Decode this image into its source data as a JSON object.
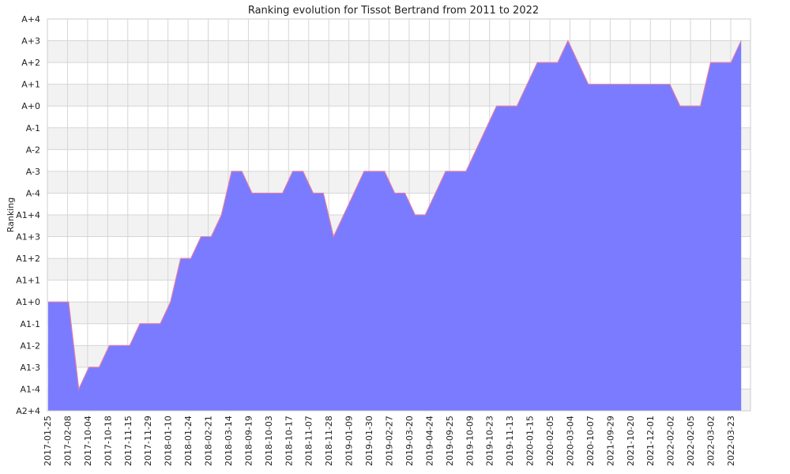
{
  "chart_data": {
    "type": "area",
    "title": "Ranking evolution for Tissot Bertrand from 2011 to 2022",
    "ylabel": "Ranking",
    "xlabel": "",
    "y_categories": [
      "A2+4",
      "A1-4",
      "A1-3",
      "A1-2",
      "A1-1",
      "A1+0",
      "A1+1",
      "A1+2",
      "A1+3",
      "A1+4",
      "A-4",
      "A-3",
      "A-2",
      "A-1",
      "A+0",
      "A+1",
      "A+2",
      "A+3",
      "A+4"
    ],
    "x_tick_labels": [
      "2017-01-25",
      "2017-02-08",
      "2017-10-04",
      "2017-10-18",
      "2017-11-15",
      "2017-11-29",
      "2018-01-10",
      "2018-01-24",
      "2018-02-21",
      "2018-03-14",
      "2018-09-19",
      "2018-10-03",
      "2018-10-17",
      "2018-11-07",
      "2018-11-28",
      "2019-01-09",
      "2019-01-30",
      "2019-02-27",
      "2019-03-20",
      "2019-04-24",
      "2019-09-25",
      "2019-10-09",
      "2019-10-23",
      "2019-11-13",
      "2020-01-15",
      "2020-02-05",
      "2020-03-04",
      "2020-10-07",
      "2021-09-29",
      "2021-10-20",
      "2021-12-01",
      "2022-02-02",
      "2022-02-05",
      "2022-03-02",
      "2022-03-23"
    ],
    "series": [
      {
        "values": [
          "A1+0",
          "A1+0",
          "A1+0",
          "A1-4",
          "A1-3",
          "A1-3",
          "A1-2",
          "A1-2",
          "A1-2",
          "A1-1",
          "A1-1",
          "A1-1",
          "A1+0",
          "A1+2",
          "A1+2",
          "A1+3",
          "A1+3",
          "A1+4",
          "A-3",
          "A-3",
          "A-4",
          "A-4",
          "A-4",
          "A-4",
          "A-3",
          "A-3",
          "A-4",
          "A-4",
          "A1+3",
          "A1+4",
          "A-4",
          "A-3",
          "A-3",
          "A-3",
          "A-4",
          "A-4",
          "A1+4",
          "A1+4",
          "A-4",
          "A-3",
          "A-3",
          "A-3",
          "A-2",
          "A-1",
          "A+0",
          "A+0",
          "A+0",
          "A+1",
          "A+2",
          "A+2",
          "A+2",
          "A+3",
          "A+2",
          "A+1",
          "A+1",
          "A+1",
          "A+1",
          "A+1",
          "A+1",
          "A+1",
          "A+1",
          "A+1",
          "A+0",
          "A+0",
          "A+0",
          "A+2",
          "A+2",
          "A+2",
          "A+3"
        ]
      }
    ],
    "colors": {
      "fill": "#7b7bff",
      "line": "#e07fa8",
      "band": "#f2f2f2",
      "grid": "#d6d6d6"
    },
    "grid": true,
    "legend": "none"
  }
}
